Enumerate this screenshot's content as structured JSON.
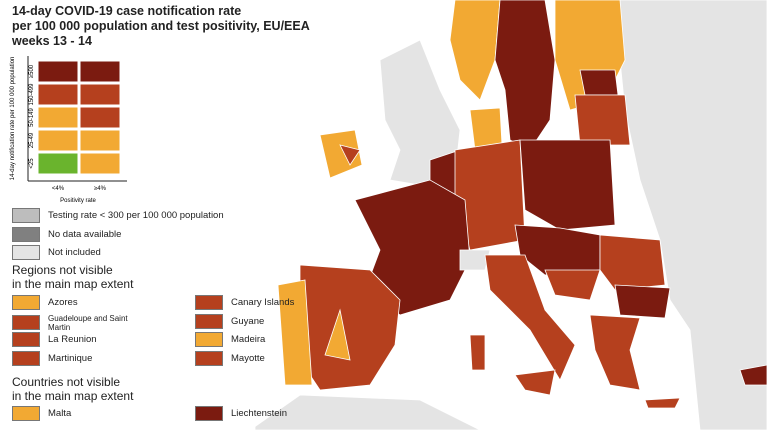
{
  "title": [
    "14-day COVID-19 case notification rate",
    "per 100 000 population and test positivity, EU/EEA",
    "weeks 13 - 14"
  ],
  "matrix": {
    "y_label": "14-day notification rate per 100 000 population",
    "rows": [
      {
        "label": "≥500",
        "colors": [
          "#7b1b10",
          "#7b1b10"
        ]
      },
      {
        "label": "150-499",
        "colors": [
          "#b5401e",
          "#b5401e"
        ]
      },
      {
        "label": "50-149",
        "colors": [
          "#f2a933",
          "#b5401e"
        ]
      },
      {
        "label": "25-49",
        "colors": [
          "#f2a933",
          "#f2a933"
        ]
      },
      {
        "label": "<25",
        "colors": [
          "#6ab42d",
          "#f2a933"
        ]
      }
    ],
    "columns": [
      "<4%",
      "≥4%"
    ],
    "x_label": "Positivity rate"
  },
  "legend": [
    {
      "label": "Testing rate < 300 per 100 000 population",
      "color": "#bdbdbd"
    },
    {
      "label": "No data available",
      "color": "#808080"
    },
    {
      "label": "Not included",
      "color": "#e4e4e4"
    }
  ],
  "regions": {
    "heading": [
      "Regions not visible",
      "in the main map extent"
    ],
    "items": [
      {
        "label": "Azores",
        "color": "#f2a933"
      },
      {
        "label": "Canary Islands",
        "color": "#b5401e"
      },
      {
        "label": "Guadeloupe and Saint Martin",
        "color": "#b5401e"
      },
      {
        "label": "Guyane",
        "color": "#b5401e"
      },
      {
        "label": "La Reunion",
        "color": "#b5401e"
      },
      {
        "label": "Madeira",
        "color": "#f2a933"
      },
      {
        "label": "Martinique",
        "color": "#b5401e"
      },
      {
        "label": "Mayotte",
        "color": "#b5401e"
      }
    ]
  },
  "countries": {
    "heading": [
      "Countries not visible",
      "in the main map extent"
    ],
    "items": [
      {
        "label": "Malta",
        "color": "#f2a933"
      },
      {
        "label": "Liechtenstein",
        "color": "#7b1b10"
      }
    ]
  }
}
